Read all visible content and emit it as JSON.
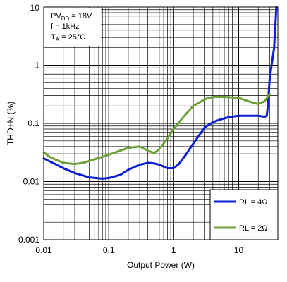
{
  "chart_data": {
    "type": "line",
    "xlabel": "Output Power (W)",
    "ylabel": "THD+N (%)",
    "xscale": "log",
    "yscale": "log",
    "xlim": [
      0.01,
      40
    ],
    "ylim": [
      0.001,
      10
    ],
    "grid": true,
    "x_ticks": [
      {
        "value": 0.01,
        "label": "0.01"
      },
      {
        "value": 0.1,
        "label": "0.1"
      },
      {
        "value": 1,
        "label": "1"
      },
      {
        "value": 10,
        "label": "10"
      }
    ],
    "y_ticks": [
      {
        "value": 0.001,
        "label": "0.001"
      },
      {
        "value": 0.01,
        "label": "0.01"
      },
      {
        "value": 0.1,
        "label": "0.1"
      },
      {
        "value": 1,
        "label": "1"
      },
      {
        "value": 10,
        "label": "10"
      }
    ],
    "conditions": [
      {
        "main": "PV",
        "sub": "DD",
        "rest": " = 18V"
      },
      {
        "main": "f = 1kHz",
        "sub": "",
        "rest": ""
      },
      {
        "main": "T",
        "sub": "A",
        "rest": " = 25°C"
      }
    ],
    "legend_position": "bottom-right",
    "series": [
      {
        "name": "RL = 4Ω",
        "color": "#0a1fd6",
        "points": [
          [
            0.01,
            0.025
          ],
          [
            0.015,
            0.02
          ],
          [
            0.02,
            0.017
          ],
          [
            0.03,
            0.014
          ],
          [
            0.05,
            0.0118
          ],
          [
            0.08,
            0.0112
          ],
          [
            0.1,
            0.0115
          ],
          [
            0.15,
            0.013
          ],
          [
            0.2,
            0.016
          ],
          [
            0.3,
            0.0195
          ],
          [
            0.4,
            0.021
          ],
          [
            0.5,
            0.0205
          ],
          [
            0.6,
            0.0195
          ],
          [
            0.8,
            0.017
          ],
          [
            1.0,
            0.017
          ],
          [
            1.2,
            0.02
          ],
          [
            1.5,
            0.028
          ],
          [
            2,
            0.045
          ],
          [
            3,
            0.085
          ],
          [
            4,
            0.105
          ],
          [
            5,
            0.115
          ],
          [
            7,
            0.128
          ],
          [
            10,
            0.135
          ],
          [
            15,
            0.135
          ],
          [
            20,
            0.135
          ],
          [
            25,
            0.13
          ],
          [
            27,
            0.135
          ],
          [
            28,
            0.2
          ],
          [
            30,
            0.6
          ],
          [
            35,
            2.0
          ],
          [
            38,
            10
          ]
        ]
      },
      {
        "name": "RL = 2Ω",
        "color": "#6fa03a",
        "points": [
          [
            0.01,
            0.032
          ],
          [
            0.012,
            0.027
          ],
          [
            0.015,
            0.024
          ],
          [
            0.02,
            0.021
          ],
          [
            0.03,
            0.02
          ],
          [
            0.04,
            0.021
          ],
          [
            0.06,
            0.024
          ],
          [
            0.1,
            0.029
          ],
          [
            0.15,
            0.034
          ],
          [
            0.2,
            0.038
          ],
          [
            0.3,
            0.04
          ],
          [
            0.4,
            0.034
          ],
          [
            0.5,
            0.031
          ],
          [
            0.6,
            0.036
          ],
          [
            0.8,
            0.055
          ],
          [
            1.0,
            0.08
          ],
          [
            1.5,
            0.14
          ],
          [
            2,
            0.2
          ],
          [
            3,
            0.26
          ],
          [
            4,
            0.285
          ],
          [
            6,
            0.285
          ],
          [
            10,
            0.275
          ],
          [
            15,
            0.235
          ],
          [
            20,
            0.215
          ],
          [
            25,
            0.24
          ],
          [
            30,
            0.32
          ]
        ]
      }
    ]
  }
}
